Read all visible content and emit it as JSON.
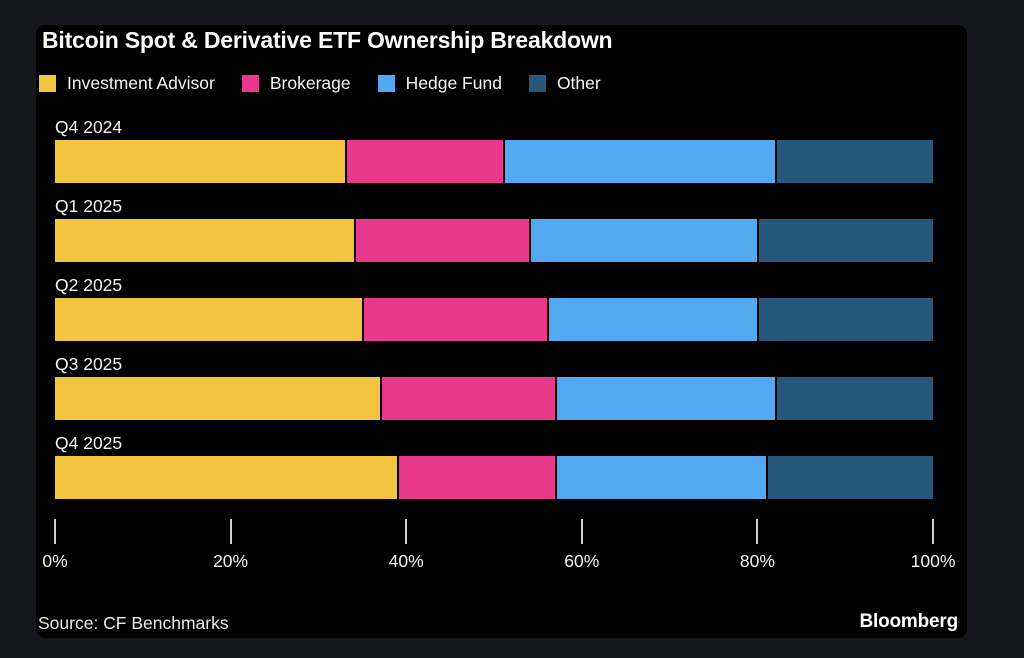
{
  "page": {
    "background": "#15171c",
    "panel_background": "#000000",
    "text_color": "#ffffff",
    "muted_text_color": "#e9e9e7",
    "tick_color": "#cfcfcf"
  },
  "header": {
    "title": "Bitcoin Spot & Derivative ETF Ownership Breakdown"
  },
  "legend": {
    "items": [
      {
        "label": "Investment Advisor",
        "color": "#F3C440"
      },
      {
        "label": "Brokerage",
        "color": "#E9398C"
      },
      {
        "label": "Hedge Fund",
        "color": "#52A9F1"
      },
      {
        "label": "Other",
        "color": "#27587B"
      }
    ]
  },
  "chart_data": {
    "type": "bar",
    "orientation": "horizontal",
    "stacked": true,
    "title": "Bitcoin Spot & Derivative ETF Ownership Breakdown",
    "categories": [
      "Q4 2024",
      "Q1 2025",
      "Q2 2025",
      "Q3 2025",
      "Q4 2025"
    ],
    "series": [
      {
        "name": "Investment Advisor",
        "color": "#F3C440",
        "values": [
          33,
          34,
          35,
          37,
          39
        ]
      },
      {
        "name": "Brokerage",
        "color": "#E9398C",
        "values": [
          18,
          20,
          21,
          20,
          18
        ]
      },
      {
        "name": "Hedge Fund",
        "color": "#52A9F1",
        "values": [
          31,
          26,
          24,
          25,
          24
        ]
      },
      {
        "name": "Other",
        "color": "#27587B",
        "values": [
          18,
          20,
          20,
          18,
          19
        ]
      }
    ],
    "value_unit": "percent",
    "xlim": [
      0,
      100
    ],
    "xticks": {
      "values": [
        0,
        20,
        40,
        60,
        80,
        100
      ],
      "labels": [
        "0%",
        "20%",
        "40%",
        "60%",
        "80%",
        "100%"
      ]
    },
    "grid": false,
    "legend_position": "top"
  },
  "footer": {
    "source": "Source: CF Benchmarks",
    "brand": "Bloomberg"
  }
}
